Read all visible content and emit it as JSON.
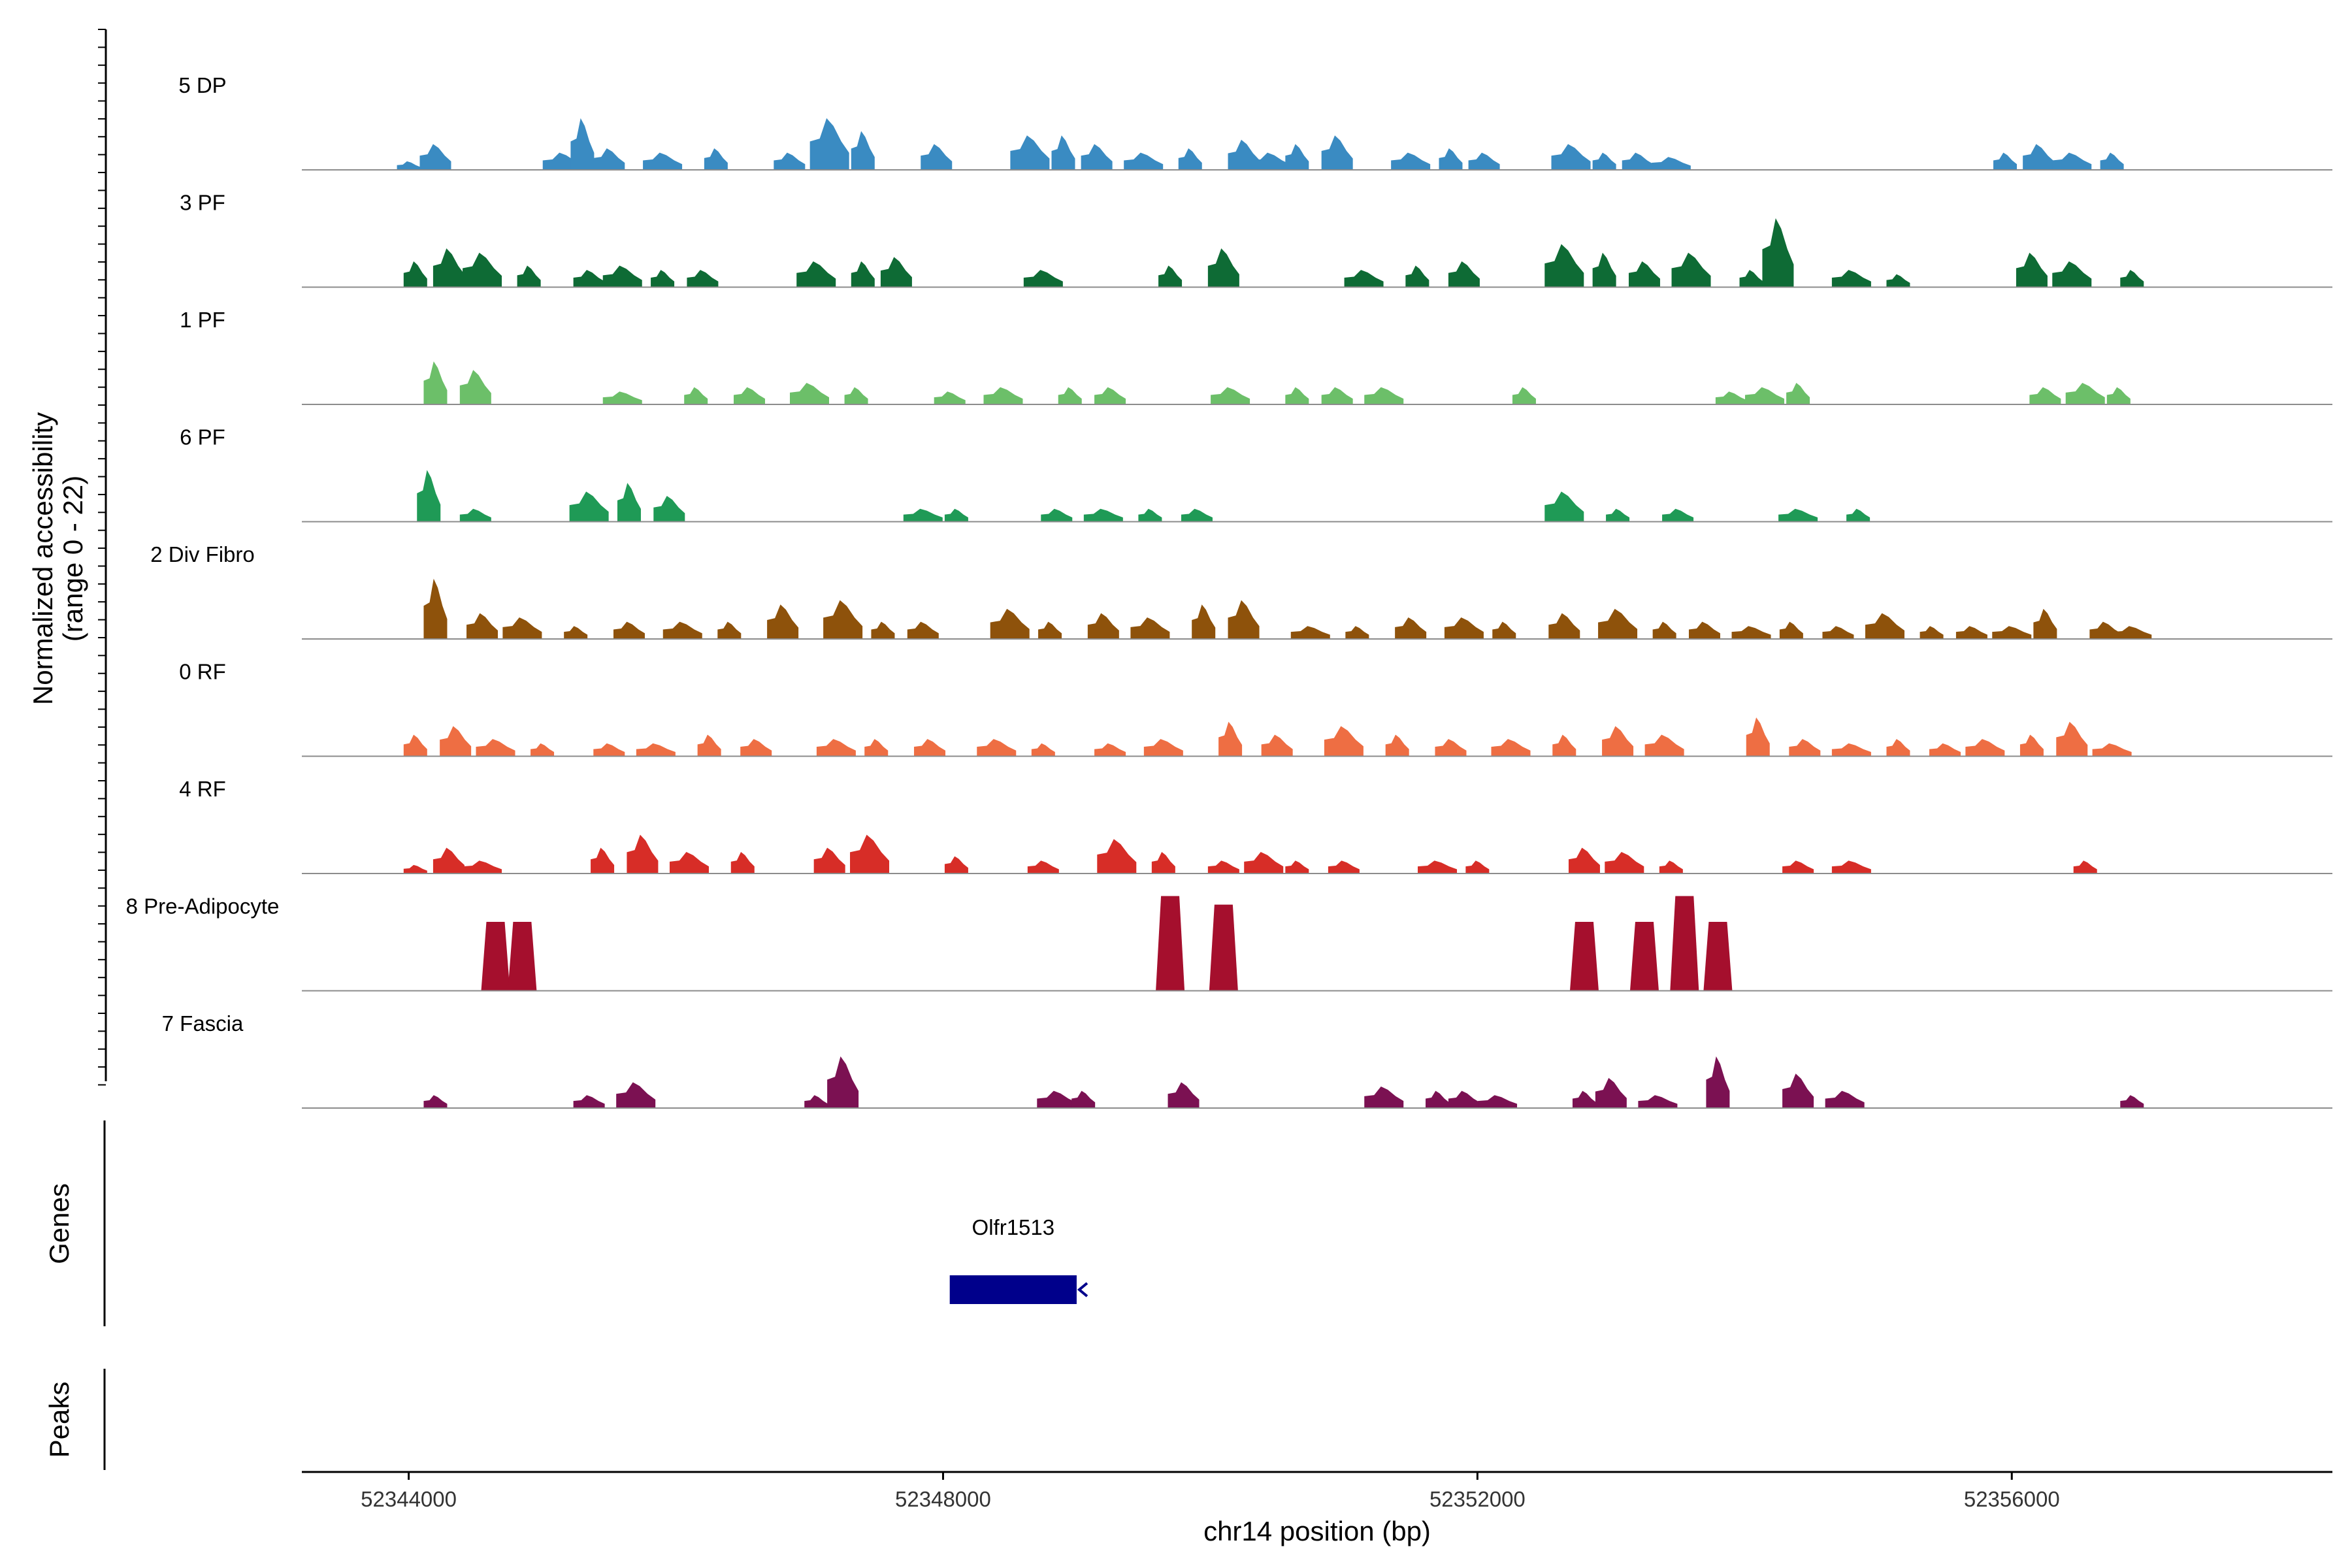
{
  "chart_data": {
    "type": "area",
    "title": "",
    "y_axis_label_line1": "Normalized accessibility",
    "y_axis_label_line2": "(range 0 - 22)",
    "ylim": [
      0,
      22
    ],
    "xlabel": "chr14 position (bp)",
    "xlim": [
      52343200,
      52358400
    ],
    "x_ticks": [
      {
        "value": 52344000,
        "label": "52344000"
      },
      {
        "value": 52348000,
        "label": "52348000"
      },
      {
        "value": 52352000,
        "label": "52352000"
      },
      {
        "value": 52356000,
        "label": "52356000"
      }
    ],
    "series": [
      {
        "name": "5 DP",
        "color": "#3a8bc2",
        "peaks": [
          [
            52344000,
            2
          ],
          [
            52344200,
            6
          ],
          [
            52345150,
            4
          ],
          [
            52345300,
            12
          ],
          [
            52345500,
            5
          ],
          [
            52345900,
            4
          ],
          [
            52346300,
            5
          ],
          [
            52346850,
            4
          ],
          [
            52347150,
            12
          ],
          [
            52347400,
            9
          ],
          [
            52347950,
            6
          ],
          [
            52348650,
            8
          ],
          [
            52348900,
            8
          ],
          [
            52349150,
            6
          ],
          [
            52349500,
            4
          ],
          [
            52349850,
            5
          ],
          [
            52350250,
            7
          ],
          [
            52350450,
            4
          ],
          [
            52350650,
            6
          ],
          [
            52350950,
            8
          ],
          [
            52351500,
            4
          ],
          [
            52351800,
            5
          ],
          [
            52352050,
            4
          ],
          [
            52352700,
            6
          ],
          [
            52352950,
            4
          ],
          [
            52353200,
            4
          ],
          [
            52353450,
            3
          ],
          [
            52355950,
            4
          ],
          [
            52356200,
            6
          ],
          [
            52356450,
            4
          ],
          [
            52356750,
            4
          ]
        ]
      },
      {
        "name": "3 PF",
        "color": "#0e6b35",
        "peaks": [
          [
            52344050,
            6
          ],
          [
            52344300,
            9
          ],
          [
            52344550,
            8
          ],
          [
            52344900,
            5
          ],
          [
            52345350,
            4
          ],
          [
            52345600,
            5
          ],
          [
            52345900,
            4
          ],
          [
            52346200,
            4
          ],
          [
            52347050,
            6
          ],
          [
            52347400,
            6
          ],
          [
            52347650,
            7
          ],
          [
            52348750,
            4
          ],
          [
            52349700,
            5
          ],
          [
            52350100,
            9
          ],
          [
            52351150,
            4
          ],
          [
            52351550,
            5
          ],
          [
            52351900,
            6
          ],
          [
            52352650,
            10
          ],
          [
            52352950,
            8
          ],
          [
            52353250,
            6
          ],
          [
            52353600,
            8
          ],
          [
            52354050,
            4
          ],
          [
            52354250,
            16
          ],
          [
            52354800,
            4
          ],
          [
            52355150,
            3
          ],
          [
            52356150,
            8
          ],
          [
            52356450,
            6
          ],
          [
            52356900,
            4
          ]
        ]
      },
      {
        "name": "1 PF",
        "color": "#6cbf69",
        "peaks": [
          [
            52344200,
            10
          ],
          [
            52344500,
            8
          ],
          [
            52345600,
            3
          ],
          [
            52346150,
            4
          ],
          [
            52346550,
            4
          ],
          [
            52347000,
            5
          ],
          [
            52347350,
            4
          ],
          [
            52348050,
            3
          ],
          [
            52348450,
            4
          ],
          [
            52348950,
            4
          ],
          [
            52349250,
            4
          ],
          [
            52350150,
            4
          ],
          [
            52350650,
            4
          ],
          [
            52350950,
            4
          ],
          [
            52351300,
            4
          ],
          [
            52352350,
            4
          ],
          [
            52353900,
            3
          ],
          [
            52354150,
            4
          ],
          [
            52354400,
            5
          ],
          [
            52356250,
            4
          ],
          [
            52356550,
            5
          ],
          [
            52356800,
            4
          ]
        ]
      },
      {
        "name": "6 PF",
        "color": "#1f9a56",
        "peaks": [
          [
            52344150,
            12
          ],
          [
            52344500,
            3
          ],
          [
            52345350,
            7
          ],
          [
            52345650,
            9
          ],
          [
            52345950,
            6
          ],
          [
            52347850,
            3
          ],
          [
            52348100,
            3
          ],
          [
            52348850,
            3
          ],
          [
            52349200,
            3
          ],
          [
            52349550,
            3
          ],
          [
            52349900,
            3
          ],
          [
            52352650,
            7
          ],
          [
            52353050,
            3
          ],
          [
            52353500,
            3
          ],
          [
            52354400,
            3
          ],
          [
            52354850,
            3
          ]
        ]
      },
      {
        "name": "2 Div Fibro",
        "color": "#8e520b",
        "peaks": [
          [
            52344200,
            14
          ],
          [
            52344550,
            6
          ],
          [
            52344850,
            5
          ],
          [
            52345250,
            3
          ],
          [
            52345650,
            4
          ],
          [
            52346050,
            4
          ],
          [
            52346400,
            4
          ],
          [
            52346800,
            8
          ],
          [
            52347250,
            9
          ],
          [
            52347550,
            4
          ],
          [
            52347850,
            4
          ],
          [
            52348500,
            7
          ],
          [
            52348800,
            4
          ],
          [
            52349200,
            6
          ],
          [
            52349550,
            5
          ],
          [
            52349950,
            8
          ],
          [
            52350250,
            9
          ],
          [
            52350750,
            3
          ],
          [
            52351100,
            3
          ],
          [
            52351500,
            5
          ],
          [
            52351900,
            5
          ],
          [
            52352200,
            4
          ],
          [
            52352650,
            6
          ],
          [
            52353050,
            7
          ],
          [
            52353400,
            4
          ],
          [
            52353700,
            4
          ],
          [
            52354050,
            3
          ],
          [
            52354350,
            4
          ],
          [
            52354700,
            3
          ],
          [
            52355050,
            6
          ],
          [
            52355400,
            3
          ],
          [
            52355700,
            3
          ],
          [
            52356000,
            3
          ],
          [
            52356250,
            7
          ],
          [
            52356700,
            4
          ],
          [
            52356900,
            3
          ]
        ]
      },
      {
        "name": "0 RF",
        "color": "#ee6e43",
        "peaks": [
          [
            52344050,
            5
          ],
          [
            52344350,
            7
          ],
          [
            52344650,
            4
          ],
          [
            52345000,
            3
          ],
          [
            52345500,
            3
          ],
          [
            52345850,
            3
          ],
          [
            52346250,
            5
          ],
          [
            52346600,
            4
          ],
          [
            52347200,
            4
          ],
          [
            52347500,
            4
          ],
          [
            52347900,
            4
          ],
          [
            52348400,
            4
          ],
          [
            52348750,
            3
          ],
          [
            52349250,
            3
          ],
          [
            52349650,
            4
          ],
          [
            52350150,
            8
          ],
          [
            52350500,
            5
          ],
          [
            52351000,
            7
          ],
          [
            52351400,
            5
          ],
          [
            52351800,
            4
          ],
          [
            52352250,
            4
          ],
          [
            52352650,
            5
          ],
          [
            52353050,
            7
          ],
          [
            52353400,
            5
          ],
          [
            52354100,
            9
          ],
          [
            52354450,
            4
          ],
          [
            52354800,
            3
          ],
          [
            52355150,
            4
          ],
          [
            52355500,
            3
          ],
          [
            52355800,
            4
          ],
          [
            52356150,
            5
          ],
          [
            52356450,
            8
          ],
          [
            52356750,
            3
          ]
        ]
      },
      {
        "name": "4 RF",
        "color": "#d72d27",
        "peaks": [
          [
            52344050,
            2
          ],
          [
            52344300,
            6
          ],
          [
            52344550,
            3
          ],
          [
            52345450,
            6
          ],
          [
            52345750,
            9
          ],
          [
            52346100,
            5
          ],
          [
            52346500,
            5
          ],
          [
            52347150,
            6
          ],
          [
            52347450,
            9
          ],
          [
            52348100,
            4
          ],
          [
            52348750,
            3
          ],
          [
            52349300,
            8
          ],
          [
            52349650,
            5
          ],
          [
            52350100,
            3
          ],
          [
            52350400,
            5
          ],
          [
            52350650,
            3
          ],
          [
            52351000,
            3
          ],
          [
            52351700,
            3
          ],
          [
            52352000,
            3
          ],
          [
            52352800,
            6
          ],
          [
            52353100,
            5
          ],
          [
            52353450,
            3
          ],
          [
            52354400,
            3
          ],
          [
            52354800,
            3
          ],
          [
            52356550,
            3
          ]
        ]
      },
      {
        "name": "8 Pre-Adipocyte",
        "color": "#a50f2d",
        "peaks": [
          [
            52344650,
            16
          ],
          [
            52344850,
            16
          ],
          [
            52349700,
            22
          ],
          [
            52350100,
            20
          ],
          [
            52352800,
            16
          ],
          [
            52353250,
            16
          ],
          [
            52353550,
            22
          ],
          [
            52353800,
            16
          ]
        ]
      },
      {
        "name": "7 Fascia",
        "color": "#7b1152",
        "peaks": [
          [
            52344200,
            3
          ],
          [
            52345350,
            3
          ],
          [
            52345700,
            6
          ],
          [
            52347050,
            3
          ],
          [
            52347250,
            12
          ],
          [
            52348850,
            4
          ],
          [
            52349050,
            4
          ],
          [
            52349800,
            6
          ],
          [
            52351300,
            5
          ],
          [
            52351700,
            4
          ],
          [
            52351900,
            4
          ],
          [
            52352150,
            3
          ],
          [
            52352800,
            4
          ],
          [
            52353000,
            7
          ],
          [
            52353350,
            3
          ],
          [
            52353800,
            12
          ],
          [
            52354400,
            8
          ],
          [
            52354750,
            4
          ],
          [
            52356900,
            3
          ]
        ]
      }
    ],
    "gene_track": {
      "label": "Genes",
      "genes": [
        {
          "name": "Olfr1513",
          "start": 52348050,
          "end": 52349000,
          "strand": "-"
        }
      ]
    },
    "peak_track": {
      "label": "Peaks",
      "peaks": []
    }
  }
}
